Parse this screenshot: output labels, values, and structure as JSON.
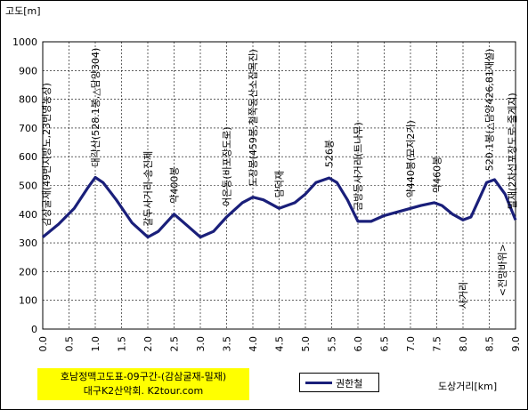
{
  "chart_data": {
    "type": "line",
    "ylabel": "고도[m]",
    "xlabel": "도상거리[km]",
    "xlim": [
      0,
      9
    ],
    "ylim": [
      0,
      1000
    ],
    "x_ticks": [
      "0.0",
      "0.5",
      "1.0",
      "1.5",
      "2.0",
      "2.5",
      "3.0",
      "3.5",
      "4.0",
      "4.5",
      "5.0",
      "5.5",
      "6.0",
      "6.5",
      "7.0",
      "7.5",
      "8.0",
      "8.5",
      "9.0"
    ],
    "y_ticks": [
      "0",
      "100",
      "200",
      "300",
      "400",
      "500",
      "600",
      "700",
      "800",
      "900",
      "1000"
    ],
    "grid": true,
    "legend_position": "bottom",
    "series": [
      {
        "name": "권한철",
        "color": "#1a1f7a",
        "x": [
          0.0,
          0.3,
          0.6,
          0.85,
          1.0,
          1.15,
          1.4,
          1.7,
          2.0,
          2.2,
          2.5,
          2.75,
          3.0,
          3.25,
          3.5,
          3.8,
          4.0,
          4.2,
          4.5,
          4.8,
          5.0,
          5.2,
          5.45,
          5.6,
          5.8,
          6.0,
          6.25,
          6.5,
          6.8,
          7.0,
          7.2,
          7.45,
          7.6,
          7.8,
          8.0,
          8.15,
          8.3,
          8.45,
          8.6,
          8.8,
          9.0
        ],
        "y": [
          320,
          365,
          420,
          490,
          528,
          510,
          450,
          370,
          320,
          340,
          400,
          360,
          320,
          340,
          390,
          440,
          459,
          450,
          420,
          440,
          470,
          510,
          526,
          510,
          450,
          375,
          375,
          395,
          410,
          420,
          430,
          440,
          430,
          400,
          380,
          390,
          450,
          510,
          520,
          470,
          380
        ]
      }
    ],
    "annotations": [
      {
        "x": 0.0,
        "text": "감상굴재(49번지방도,23번영농장)"
      },
      {
        "x": 1.0,
        "text": "대각산(528.1봉,△담양304)"
      },
      {
        "x": 2.0,
        "text": "갈두사거리-송진제"
      },
      {
        "x": 2.5,
        "text": "약400봉"
      },
      {
        "x": 3.5,
        "text": "어은동(비포장도로)"
      },
      {
        "x": 4.0,
        "text": "도장봉(459봉,철쭉동산소잡목진)"
      },
      {
        "x": 4.5,
        "text": "담덕재"
      },
      {
        "x": 5.45,
        "text": "526봉"
      },
      {
        "x": 6.0,
        "text": "금방등사거리(트나무)"
      },
      {
        "x": 7.0,
        "text": "약440봉(묘지2기)"
      },
      {
        "x": 7.5,
        "text": "약460봉"
      },
      {
        "x": 8.0,
        "text": "사거리"
      },
      {
        "x": 8.5,
        "text": "520.1봉(△담양426,81재설)"
      },
      {
        "x": 9.0,
        "text": "밀재(2차선포장도로-줄게지)"
      },
      {
        "x": 8.75,
        "text": "<전망바위>"
      }
    ]
  },
  "credit": {
    "line1": "호남정맥고도표-09구간-(감삼굴재-밀재)",
    "line2": "대구K2산악회. K2tour.com"
  }
}
